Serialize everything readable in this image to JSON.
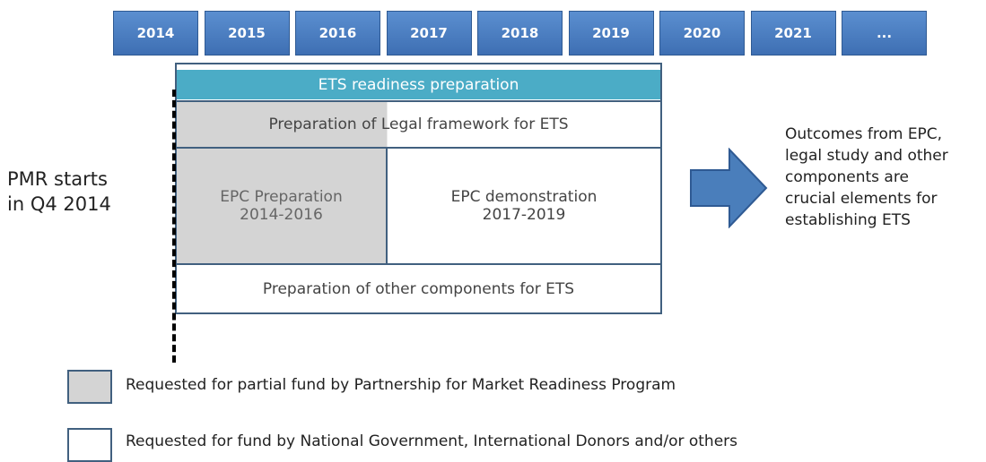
{
  "timeline": {
    "years": [
      "2014",
      "2015",
      "2016",
      "2017",
      "2018",
      "2019",
      "2020",
      "2021",
      "..."
    ]
  },
  "diagram": {
    "header": "ETS readiness preparation",
    "legal": "Preparation of Legal framework for ETS",
    "epc_preparation": [
      "EPC Preparation",
      "2014-2016"
    ],
    "epc_demonstration": [
      "EPC demonstration",
      "2017-2019"
    ],
    "other": "Preparation of other components for ETS"
  },
  "start_note": [
    "PMR starts",
    "in Q4 2014"
  ],
  "outcome": [
    "Outcomes from EPC,",
    "legal study and other",
    "components are",
    "crucial elements for",
    "establishing ETS"
  ],
  "legend": [
    {
      "label": "Requested for partial fund by Partnership for Market Readiness Program"
    },
    {
      "label": "Requested for fund by National Government, International Donors  and/or others"
    }
  ]
}
